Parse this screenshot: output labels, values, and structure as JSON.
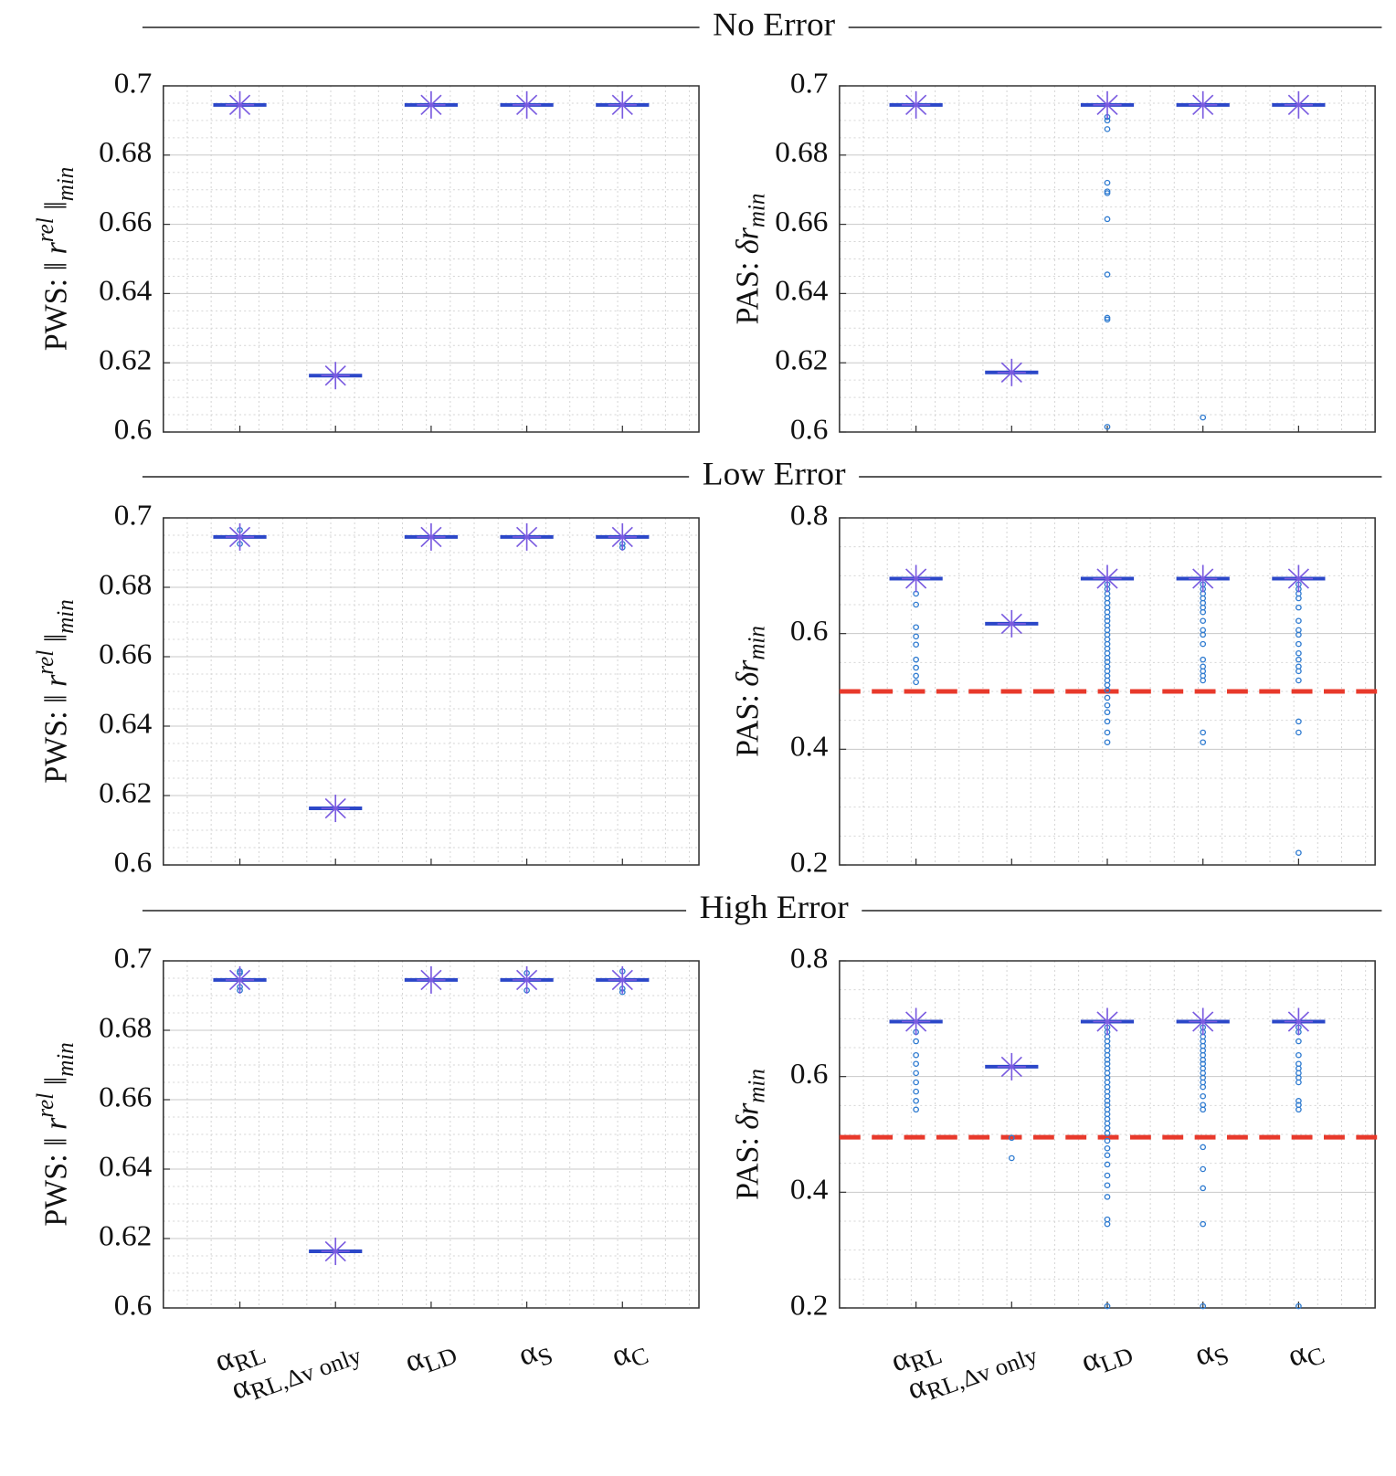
{
  "chart_data": [
    {
      "type": "box",
      "section_title": "No Error",
      "ylabel": {
        "text": "PWS: ‖ ",
        "var": "r",
        "sup": "rel",
        "close": " ‖",
        "sub": "min"
      },
      "ylim": [
        0.6,
        0.7
      ],
      "yticks": [
        0.6,
        0.62,
        0.64,
        0.66,
        0.68,
        0.7
      ],
      "grid": true,
      "minor_grid": true,
      "box_color": "#2b47c8",
      "marker_color": "#7a5be0",
      "outlier_color": "#2f7bd0",
      "medians": [
        0.6945,
        0.6163,
        0.6945,
        0.6945,
        0.6945
      ],
      "outliers": [
        [],
        [],
        [],
        [],
        []
      ]
    },
    {
      "type": "box",
      "ylabel": {
        "text": "PAS: ",
        "var": "δr",
        "sub": "min"
      },
      "ylim": [
        0.6,
        0.7
      ],
      "yticks": [
        0.6,
        0.62,
        0.64,
        0.66,
        0.68,
        0.7
      ],
      "grid": true,
      "minor_grid": true,
      "box_color": "#2b47c8",
      "marker_color": "#7a5be0",
      "outlier_color": "#2f7bd0",
      "medians": [
        0.6945,
        0.6172,
        0.6945,
        0.6945,
        0.6945
      ],
      "outliers": [
        [],
        [],
        [
          0.691,
          0.69,
          0.6875,
          0.672,
          0.6695,
          0.669,
          0.6615,
          0.6455,
          0.633,
          0.6325,
          0.6015
        ],
        [
          0.6042
        ],
        []
      ]
    },
    {
      "type": "box",
      "section_title": "Low Error",
      "ylabel": {
        "text": "PWS: ‖ ",
        "var": "r",
        "sup": "rel",
        "close": " ‖",
        "sub": "min"
      },
      "ylim": [
        0.6,
        0.7
      ],
      "yticks": [
        0.6,
        0.62,
        0.64,
        0.66,
        0.68,
        0.7
      ],
      "grid": true,
      "minor_grid": true,
      "box_color": "#2b47c8",
      "marker_color": "#7a5be0",
      "outlier_color": "#2f7bd0",
      "medians": [
        0.6945,
        0.6163,
        0.6945,
        0.6945,
        0.6945
      ],
      "outliers": [
        [
          0.6925,
          0.6965
        ],
        [],
        [],
        [],
        [
          0.6915,
          0.6925
        ]
      ]
    },
    {
      "type": "box",
      "ylabel": {
        "text": "PAS: ",
        "var": "δr",
        "sub": "min"
      },
      "ylim": [
        0.2,
        0.8
      ],
      "yticks": [
        0.2,
        0.4,
        0.6,
        0.8
      ],
      "grid": true,
      "minor_grid": true,
      "box_color": "#2b47c8",
      "marker_color": "#7a5be0",
      "outlier_color": "#2f7bd0",
      "threshold": 0.5,
      "threshold_color": "#e8392b",
      "medians": [
        0.695,
        0.617,
        0.695,
        0.695,
        0.695
      ],
      "outliers": [
        [
          0.669,
          0.65,
          0.611,
          0.595,
          0.581,
          0.555,
          0.541,
          0.527,
          0.516
        ],
        [],
        [
          0.685,
          0.677,
          0.669,
          0.661,
          0.653,
          0.645,
          0.637,
          0.629,
          0.622,
          0.614,
          0.606,
          0.598,
          0.59,
          0.582,
          0.574,
          0.566,
          0.558,
          0.551,
          0.543,
          0.535,
          0.527,
          0.519,
          0.511,
          0.502,
          0.489,
          0.476,
          0.464,
          0.448,
          0.429,
          0.412
        ],
        [
          0.685,
          0.677,
          0.669,
          0.661,
          0.653,
          0.645,
          0.637,
          0.622,
          0.606,
          0.598,
          0.582,
          0.555,
          0.543,
          0.535,
          0.527,
          0.519,
          0.429,
          0.412
        ],
        [
          0.685,
          0.677,
          0.669,
          0.661,
          0.645,
          0.622,
          0.606,
          0.598,
          0.582,
          0.566,
          0.555,
          0.543,
          0.535,
          0.519,
          0.448,
          0.429,
          0.221
        ]
      ]
    },
    {
      "type": "box",
      "section_title": "High Error",
      "ylabel": {
        "text": "PWS: ‖ ",
        "var": "r",
        "sup": "rel",
        "close": " ‖",
        "sub": "min"
      },
      "ylim": [
        0.6,
        0.7
      ],
      "yticks": [
        0.6,
        0.62,
        0.64,
        0.66,
        0.68,
        0.7
      ],
      "grid": true,
      "minor_grid": true,
      "box_color": "#2b47c8",
      "marker_color": "#7a5be0",
      "outlier_color": "#2f7bd0",
      "categories": [
        {
          "base": "α",
          "sub": "RL"
        },
        {
          "base": "α",
          "sub": "RL,Δv only"
        },
        {
          "base": "α",
          "sub": "LD"
        },
        {
          "base": "α",
          "sub": "S"
        },
        {
          "base": "α",
          "sub": "C"
        }
      ],
      "medians": [
        0.6945,
        0.6163,
        0.6945,
        0.6945,
        0.6945
      ],
      "outliers": [
        [
          0.6915,
          0.6925,
          0.6965,
          0.697
        ],
        [],
        [],
        [
          0.6915,
          0.6965
        ],
        [
          0.691,
          0.692,
          0.697
        ]
      ]
    },
    {
      "type": "box",
      "ylabel": {
        "text": "PAS: ",
        "var": "δr",
        "sub": "min"
      },
      "ylim": [
        0.2,
        0.8
      ],
      "yticks": [
        0.2,
        0.4,
        0.6,
        0.8
      ],
      "grid": true,
      "minor_grid": true,
      "box_color": "#2b47c8",
      "marker_color": "#7a5be0",
      "outlier_color": "#2f7bd0",
      "threshold": 0.495,
      "threshold_color": "#e8392b",
      "categories": [
        {
          "base": "α",
          "sub": "RL"
        },
        {
          "base": "α",
          "sub": "RL,Δv only"
        },
        {
          "base": "α",
          "sub": "LD"
        },
        {
          "base": "α",
          "sub": "S"
        },
        {
          "base": "α",
          "sub": "C"
        }
      ],
      "medians": [
        0.695,
        0.617,
        0.695,
        0.695,
        0.695
      ],
      "outliers": [
        [
          0.677,
          0.661,
          0.637,
          0.622,
          0.606,
          0.59,
          0.574,
          0.558,
          0.543
        ],
        [
          0.494,
          0.459
        ],
        [
          0.685,
          0.677,
          0.669,
          0.661,
          0.653,
          0.645,
          0.637,
          0.629,
          0.622,
          0.614,
          0.606,
          0.598,
          0.59,
          0.582,
          0.574,
          0.566,
          0.558,
          0.551,
          0.543,
          0.535,
          0.527,
          0.519,
          0.511,
          0.502,
          0.489,
          0.476,
          0.464,
          0.448,
          0.429,
          0.412,
          0.392,
          0.353,
          0.345,
          0.203
        ],
        [
          0.685,
          0.677,
          0.669,
          0.661,
          0.653,
          0.645,
          0.637,
          0.629,
          0.622,
          0.614,
          0.606,
          0.598,
          0.59,
          0.582,
          0.566,
          0.551,
          0.543,
          0.478,
          0.44,
          0.407,
          0.345,
          0.203
        ],
        [
          0.685,
          0.677,
          0.661,
          0.637,
          0.622,
          0.614,
          0.606,
          0.598,
          0.59,
          0.558,
          0.551,
          0.543,
          0.203
        ]
      ]
    }
  ]
}
